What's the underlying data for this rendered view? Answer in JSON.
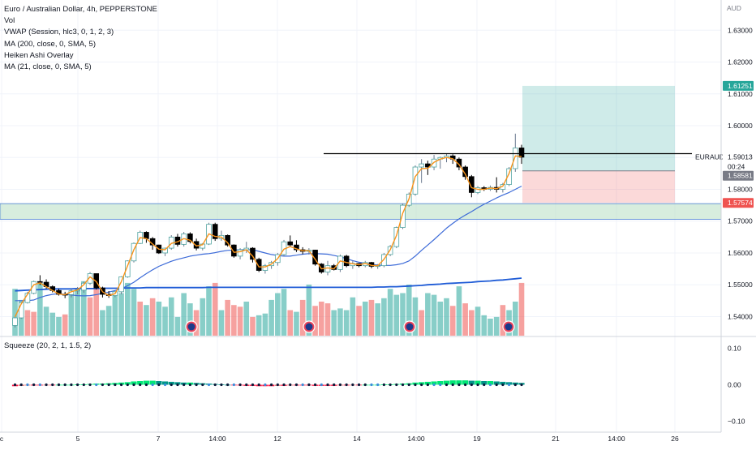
{
  "legend": [
    "Euro / Australian Dollar, 4h, PEPPERSTONE",
    "Vol",
    "VWAP (Session, hlc3, 0, 1, 2, 3)",
    "MA (200, close, 0, SMA, 5)",
    "Heiken Ashi Overlay",
    "MA (21, close, 0, SMA, 5)"
  ],
  "squeeze_legend": "Squeeze (20, 2, 1, 1.5, 2)",
  "colors": {
    "bull": "#ffffff",
    "bear": "#000000",
    "vol_up": "#26a69a",
    "vol_down": "#ef5350",
    "ma_long": "#1e5bd6",
    "ma_short": "#3d6bd8",
    "vwap": "#f7931a",
    "zone_green": "#26a69a",
    "zone_red": "#ef5350",
    "supply": "#b7dfc3"
  },
  "chart_data": {
    "type": "candlestick",
    "symbol": "EURAUD",
    "currency": "AUD",
    "y_axis": {
      "unit": "AUD",
      "range": [
        1.534,
        1.6395
      ],
      "ticks": [
        "1.63000",
        "1.62000",
        "1.61000",
        "1.60000",
        "1.59000",
        "1.58000",
        "1.57000",
        "1.56000",
        "1.55000",
        "1.54000"
      ]
    },
    "x_axis": {
      "ticks": [
        "c",
        "5",
        "7",
        "14:00",
        "12",
        "14",
        "14:00",
        "19",
        "21",
        "14:00",
        "26"
      ]
    },
    "price_labels": {
      "target": "1.61251",
      "last": "1.59013",
      "countdown": "00:24",
      "entry": "1.58581",
      "stop": "1.57574"
    },
    "levels": {
      "resistance": 1.5912,
      "supply_zone": [
        1.5706,
        1.5755
      ],
      "target": 1.61251,
      "entry": 1.58581,
      "stop": 1.57574
    },
    "candles": [
      [
        1.5372,
        1.5398,
        1.5366,
        1.5396
      ],
      [
        1.5396,
        1.5444,
        1.5393,
        1.5444
      ],
      [
        1.5444,
        1.5478,
        1.5441,
        1.5473
      ],
      [
        1.5473,
        1.5513,
        1.547,
        1.551
      ],
      [
        1.551,
        1.553,
        1.5499,
        1.5508
      ],
      [
        1.5508,
        1.5517,
        1.5487,
        1.5494
      ],
      [
        1.5494,
        1.5498,
        1.5476,
        1.5482
      ],
      [
        1.5482,
        1.5488,
        1.5466,
        1.547
      ],
      [
        1.547,
        1.5478,
        1.5458,
        1.5469
      ],
      [
        1.5469,
        1.5487,
        1.546,
        1.5481
      ],
      [
        1.5481,
        1.5493,
        1.547,
        1.5483
      ],
      [
        1.5483,
        1.551,
        1.5475,
        1.5505
      ],
      [
        1.5505,
        1.554,
        1.55,
        1.5535
      ],
      [
        1.5535,
        1.5534,
        1.5485,
        1.549
      ],
      [
        1.549,
        1.5494,
        1.546,
        1.547
      ],
      [
        1.547,
        1.548,
        1.5459,
        1.5466
      ],
      [
        1.5466,
        1.548,
        1.5461,
        1.5478
      ],
      [
        1.5478,
        1.5527,
        1.547,
        1.5525
      ],
      [
        1.5525,
        1.5577,
        1.5522,
        1.5575
      ],
      [
        1.5575,
        1.5633,
        1.557,
        1.563
      ],
      [
        1.563,
        1.567,
        1.5628,
        1.5665
      ],
      [
        1.5665,
        1.5668,
        1.5632,
        1.5645
      ],
      [
        1.5645,
        1.565,
        1.561,
        1.5625
      ],
      [
        1.5625,
        1.5626,
        1.5597,
        1.56
      ],
      [
        1.56,
        1.5617,
        1.559,
        1.5615
      ],
      [
        1.5615,
        1.5656,
        1.561,
        1.565
      ],
      [
        1.565,
        1.566,
        1.562,
        1.5627
      ],
      [
        1.5627,
        1.5666,
        1.562,
        1.566
      ],
      [
        1.566,
        1.5665,
        1.563,
        1.5636
      ],
      [
        1.5636,
        1.5645,
        1.5608,
        1.5615
      ],
      [
        1.5615,
        1.5631,
        1.5608,
        1.5628
      ],
      [
        1.5628,
        1.5695,
        1.5625,
        1.569
      ],
      [
        1.569,
        1.5695,
        1.5638,
        1.5645
      ],
      [
        1.5645,
        1.567,
        1.5638,
        1.5655
      ],
      [
        1.5655,
        1.5658,
        1.562,
        1.5625
      ],
      [
        1.5625,
        1.5627,
        1.5585,
        1.559
      ],
      [
        1.559,
        1.5615,
        1.558,
        1.561
      ],
      [
        1.561,
        1.5635,
        1.56,
        1.5615
      ],
      [
        1.5615,
        1.5618,
        1.557,
        1.558
      ],
      [
        1.558,
        1.5585,
        1.554,
        1.5545
      ],
      [
        1.5545,
        1.5565,
        1.5535,
        1.556
      ],
      [
        1.556,
        1.5575,
        1.555,
        1.557
      ],
      [
        1.557,
        1.56,
        1.556,
        1.5595
      ],
      [
        1.5595,
        1.5641,
        1.559,
        1.5635
      ],
      [
        1.5635,
        1.5655,
        1.562,
        1.5625
      ],
      [
        1.5625,
        1.564,
        1.5603,
        1.561
      ],
      [
        1.561,
        1.5618,
        1.5596,
        1.5605
      ],
      [
        1.5605,
        1.5615,
        1.5595,
        1.5609
      ],
      [
        1.5609,
        1.561,
        1.556,
        1.5565
      ],
      [
        1.5565,
        1.5568,
        1.5535,
        1.554
      ],
      [
        1.554,
        1.5575,
        1.553,
        1.556
      ],
      [
        1.556,
        1.5565,
        1.5545,
        1.5548
      ],
      [
        1.5548,
        1.5595,
        1.554,
        1.559
      ],
      [
        1.559,
        1.5594,
        1.5555,
        1.556
      ],
      [
        1.556,
        1.5575,
        1.555,
        1.5567
      ],
      [
        1.5567,
        1.5568,
        1.5555,
        1.556
      ],
      [
        1.556,
        1.5575,
        1.5555,
        1.557
      ],
      [
        1.557,
        1.5572,
        1.5552,
        1.5558
      ],
      [
        1.5558,
        1.5565,
        1.555,
        1.556
      ],
      [
        1.556,
        1.56,
        1.5555,
        1.5595
      ],
      [
        1.5595,
        1.5625,
        1.559,
        1.562
      ],
      [
        1.562,
        1.5683,
        1.5615,
        1.568
      ],
      [
        1.568,
        1.5755,
        1.5675,
        1.575
      ],
      [
        1.575,
        1.579,
        1.5745,
        1.5785
      ],
      [
        1.5785,
        1.5875,
        1.578,
        1.587
      ],
      [
        1.587,
        1.5895,
        1.582,
        1.588
      ],
      [
        1.588,
        1.589,
        1.5845,
        1.587
      ],
      [
        1.587,
        1.5908,
        1.586,
        1.5895
      ],
      [
        1.5895,
        1.5903,
        1.5865,
        1.59
      ],
      [
        1.59,
        1.5913,
        1.5885,
        1.5905
      ],
      [
        1.5905,
        1.591,
        1.588,
        1.5895
      ],
      [
        1.5895,
        1.59,
        1.586,
        1.587
      ],
      [
        1.587,
        1.5875,
        1.583,
        1.584
      ],
      [
        1.584,
        1.5845,
        1.5775,
        1.579
      ],
      [
        1.579,
        1.581,
        1.5785,
        1.5805
      ],
      [
        1.5805,
        1.581,
        1.5795,
        1.58
      ],
      [
        1.58,
        1.5812,
        1.5795,
        1.5806
      ],
      [
        1.5806,
        1.5838,
        1.579,
        1.58
      ],
      [
        1.58,
        1.582,
        1.579,
        1.5815
      ],
      [
        1.5815,
        1.587,
        1.581,
        1.5865
      ],
      [
        1.5865,
        1.5975,
        1.5855,
        1.593
      ],
      [
        1.593,
        1.594,
        1.588,
        1.5901
      ]
    ],
    "volume_colors": [
      "up",
      "up",
      "down",
      "down",
      "up",
      "up",
      "up",
      "up",
      "down",
      "up",
      "up",
      "up",
      "down",
      "down",
      "up",
      "up",
      "up",
      "up",
      "up",
      "up",
      "down",
      "up",
      "down",
      "up",
      "up",
      "up",
      "up",
      "up",
      "up",
      "down",
      "up",
      "up",
      "down",
      "up",
      "down",
      "down",
      "down",
      "up",
      "down",
      "up",
      "up",
      "up",
      "up",
      "up",
      "down",
      "up",
      "down",
      "up",
      "down",
      "down",
      "down",
      "up",
      "up",
      "up",
      "up",
      "down",
      "up",
      "down",
      "up",
      "up",
      "up",
      "up",
      "up",
      "up",
      "up",
      "down",
      "up",
      "up",
      "up",
      "up",
      "down",
      "up",
      "down",
      "down",
      "up",
      "up",
      "up",
      "up",
      "down",
      "up",
      "up",
      "down"
    ],
    "volume_values": [
      0.55,
      0.42,
      0.3,
      0.28,
      0.62,
      0.34,
      0.27,
      0.22,
      0.25,
      0.48,
      0.55,
      0.64,
      0.45,
      0.58,
      0.3,
      0.35,
      0.48,
      0.5,
      0.62,
      0.55,
      0.4,
      0.36,
      0.44,
      0.4,
      0.34,
      0.45,
      0.22,
      0.5,
      0.38,
      0.3,
      0.44,
      0.58,
      0.62,
      0.3,
      0.42,
      0.36,
      0.34,
      0.4,
      0.22,
      0.24,
      0.26,
      0.42,
      0.5,
      0.55,
      0.3,
      0.28,
      0.42,
      0.6,
      0.35,
      0.4,
      0.38,
      0.3,
      0.32,
      0.3,
      0.45,
      0.35,
      0.4,
      0.42,
      0.38,
      0.44,
      0.55,
      0.48,
      0.5,
      0.6,
      0.45,
      0.3,
      0.5,
      0.48,
      0.4,
      0.44,
      0.35,
      0.58,
      0.38,
      0.3,
      0.34,
      0.24,
      0.2,
      0.22,
      0.36,
      0.3,
      0.4,
      0.62
    ],
    "ma_long": [
      1.5481,
      1.5482,
      1.5483,
      1.5484,
      1.5485,
      1.5486,
      1.5487,
      1.5487,
      1.5487,
      1.5487,
      1.5488,
      1.5488,
      1.5488,
      1.5488,
      1.5489,
      1.5489,
      1.5489,
      1.5489,
      1.549,
      1.549,
      1.549,
      1.5491,
      1.5491,
      1.5491,
      1.5491,
      1.5491,
      1.5491,
      1.5491,
      1.5491,
      1.5491,
      1.5491,
      1.5492,
      1.5492,
      1.5492,
      1.5492,
      1.5492,
      1.5492,
      1.5492,
      1.5492,
      1.5492,
      1.5492,
      1.5492,
      1.5492,
      1.5492,
      1.5492,
      1.5492,
      1.5492,
      1.5492,
      1.5492,
      1.5492,
      1.5492,
      1.5492,
      1.5492,
      1.5492,
      1.5492,
      1.5492,
      1.5492,
      1.5492,
      1.5493,
      1.5493,
      1.5494,
      1.5494,
      1.5495,
      1.5496,
      1.5497,
      1.5498,
      1.55,
      1.5501,
      1.5502,
      1.5504,
      1.5505,
      1.5506,
      1.5507,
      1.5508,
      1.551,
      1.5511,
      1.5512,
      1.5514,
      1.5515,
      1.5517,
      1.5519,
      1.5521
    ],
    "ma_short": [
      1.545,
      1.545,
      1.545,
      1.5452,
      1.546,
      1.5466,
      1.547,
      1.5472,
      1.547,
      1.5468,
      1.5466,
      1.5465,
      1.5466,
      1.5469,
      1.5473,
      1.5477,
      1.5482,
      1.5488,
      1.5497,
      1.5508,
      1.5522,
      1.5535,
      1.5547,
      1.5558,
      1.5566,
      1.5574,
      1.558,
      1.5585,
      1.559,
      1.5593,
      1.5596,
      1.5598,
      1.5601,
      1.5605,
      1.5608,
      1.5609,
      1.561,
      1.561,
      1.561,
      1.5605,
      1.56,
      1.5595,
      1.5592,
      1.559,
      1.559,
      1.5593,
      1.5596,
      1.5598,
      1.5598,
      1.5597,
      1.5596,
      1.5592,
      1.5588,
      1.5582,
      1.5576,
      1.5571,
      1.5567,
      1.5564,
      1.5562,
      1.5561,
      1.5561,
      1.5563,
      1.5567,
      1.5575,
      1.559,
      1.5608,
      1.5625,
      1.5642,
      1.566,
      1.5678,
      1.5693,
      1.5707,
      1.5719,
      1.573,
      1.5742,
      1.5753,
      1.5763,
      1.5773,
      1.5782,
      1.579,
      1.58,
      1.581
    ],
    "vwap": [
      1.5399,
      1.544,
      1.547,
      1.55,
      1.5506,
      1.5494,
      1.5482,
      1.5471,
      1.5469,
      1.5478,
      1.5484,
      1.55,
      1.5525,
      1.551,
      1.5478,
      1.5466,
      1.5472,
      1.551,
      1.556,
      1.561,
      1.5648,
      1.5645,
      1.5628,
      1.5612,
      1.561,
      1.563,
      1.5635,
      1.5645,
      1.564,
      1.5622,
      1.5626,
      1.566,
      1.5652,
      1.565,
      1.5632,
      1.5602,
      1.5604,
      1.561,
      1.559,
      1.5556,
      1.5556,
      1.5565,
      1.5582,
      1.5612,
      1.562,
      1.5613,
      1.5607,
      1.5607,
      1.558,
      1.555,
      1.5553,
      1.555,
      1.5575,
      1.557,
      1.5566,
      1.5563,
      1.5567,
      1.5561,
      1.556,
      1.558,
      1.561,
      1.5655,
      1.5725,
      1.577,
      1.584,
      1.5865,
      1.5866,
      1.5885,
      1.5895,
      1.59,
      1.5896,
      1.5878,
      1.5848,
      1.5805,
      1.58,
      1.58,
      1.5804,
      1.5802,
      1.581,
      1.585,
      1.5905,
      1.5903
    ],
    "squeeze_values": [
      -0.004,
      -0.003,
      -0.002,
      -0.002,
      -0.002,
      -0.001,
      -0.001,
      0.0,
      0.0,
      0.0,
      0.001,
      0.001,
      0.002,
      0.003,
      0.003,
      0.004,
      0.005,
      0.006,
      0.007,
      0.009,
      0.01,
      0.011,
      0.011,
      0.01,
      0.009,
      0.008,
      0.007,
      0.006,
      0.006,
      0.005,
      0.004,
      0.003,
      0.002,
      0.001,
      0.0,
      -0.001,
      -0.002,
      -0.003,
      -0.003,
      -0.004,
      -0.004,
      -0.004,
      -0.003,
      -0.003,
      -0.002,
      -0.002,
      -0.002,
      -0.002,
      -0.003,
      -0.003,
      -0.003,
      -0.003,
      -0.002,
      -0.002,
      -0.001,
      -0.001,
      0.0,
      0.0,
      0.0,
      0.001,
      0.001,
      0.002,
      0.003,
      0.004,
      0.006,
      0.007,
      0.008,
      0.009,
      0.01,
      0.011,
      0.012,
      0.012,
      0.012,
      0.011,
      0.011,
      0.01,
      0.01,
      0.009,
      0.008,
      0.007,
      0.006,
      0.005
    ],
    "squeeze_axis": {
      "range": [
        -0.13,
        0.13
      ],
      "ticks": [
        "0.10",
        "0.00",
        "−0.10"
      ]
    },
    "flag_count": 4
  }
}
